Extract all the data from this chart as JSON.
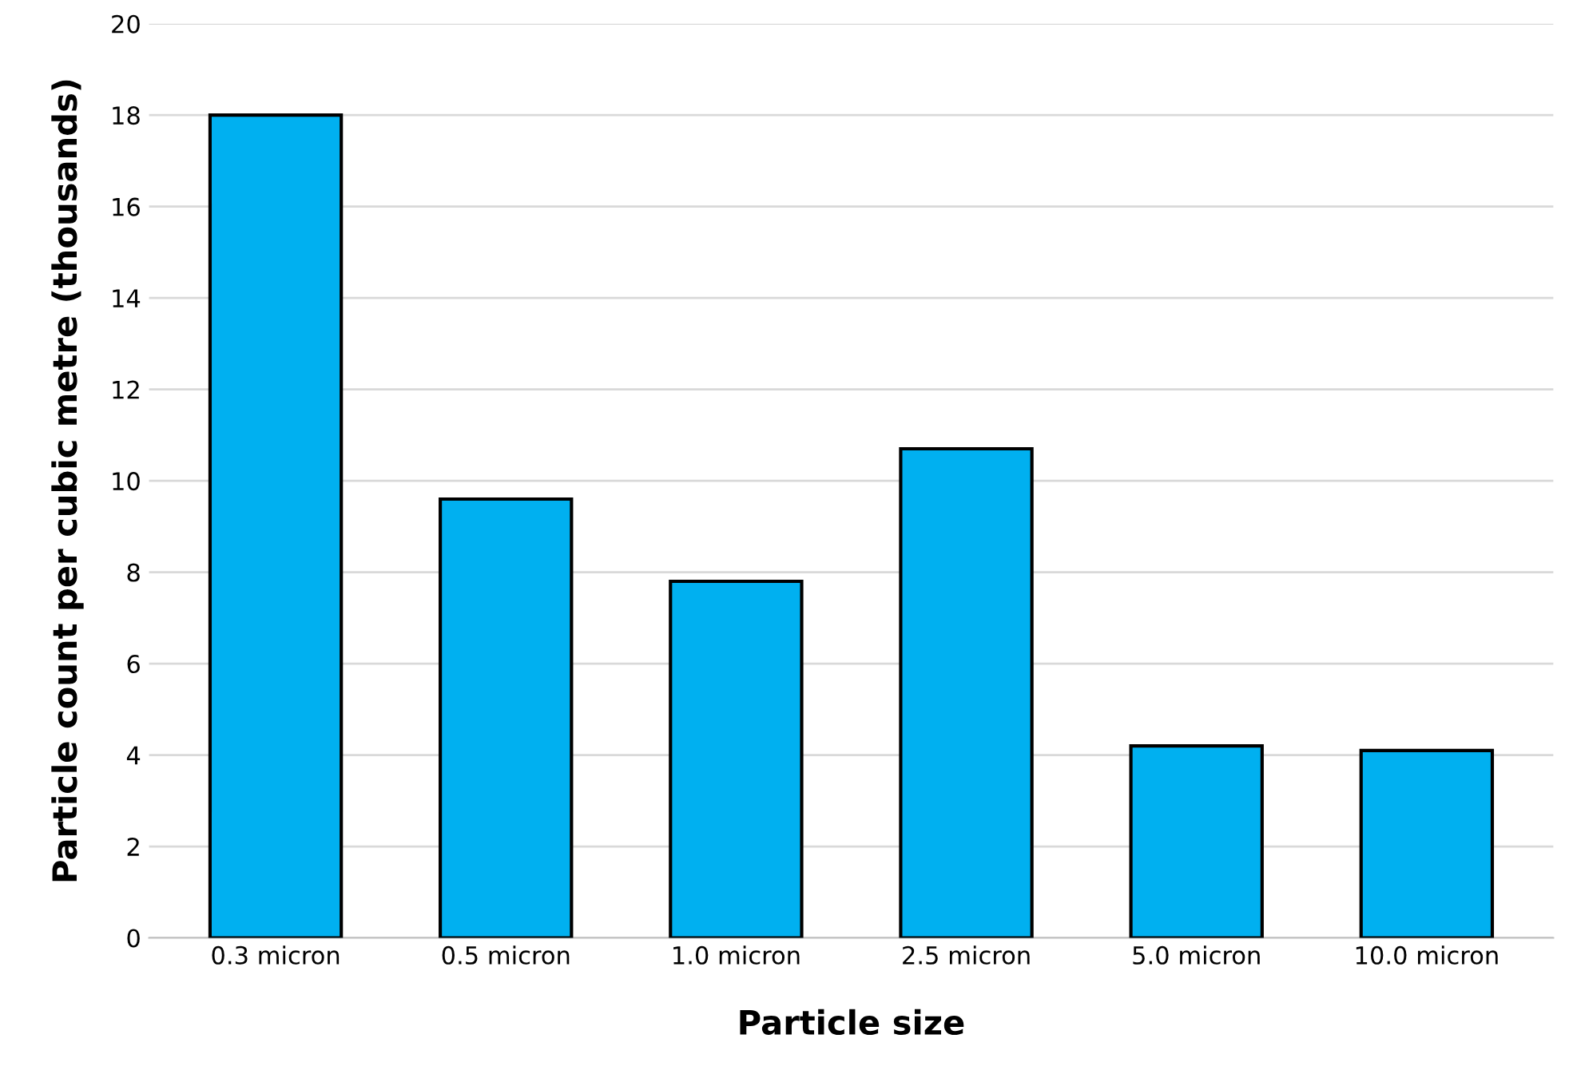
{
  "chart_data": {
    "type": "bar",
    "xlabel": "Particle size",
    "ylabel": "Particle count per cubic metre (thousands)",
    "categories": [
      "0.3 micron",
      "0.5 micron",
      "1.0 micron",
      "2.5 micron",
      "5.0 micron",
      "10.0 micron"
    ],
    "values": [
      18.0,
      9.6,
      7.8,
      10.7,
      4.2,
      4.1
    ],
    "color": "#00b0f0",
    "ylim": [
      0,
      20
    ],
    "yticks": [
      0,
      2,
      4,
      6,
      8,
      10,
      12,
      14,
      16,
      18,
      20
    ],
    "grid": "y"
  }
}
